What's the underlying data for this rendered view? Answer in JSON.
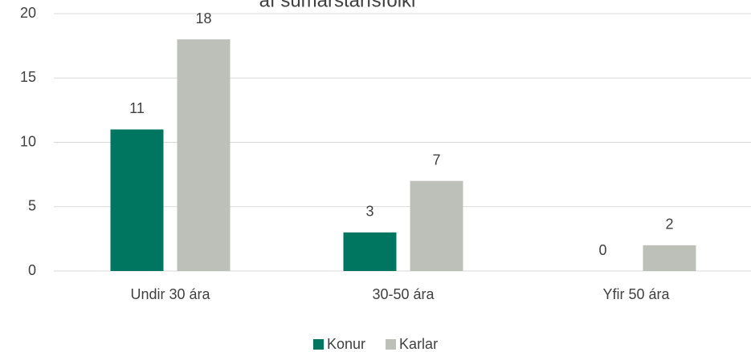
{
  "chart_data": {
    "type": "bar",
    "title": "af sumarstarfsfólki",
    "categories": [
      "Undir 30 ára",
      "30-50 ára",
      "Yfir 50 ára"
    ],
    "series": [
      {
        "name": "Konur",
        "color": "#007560",
        "values": [
          11,
          3,
          0
        ]
      },
      {
        "name": "Karlar",
        "color": "#bcc0b8",
        "values": [
          18,
          7,
          2
        ]
      }
    ],
    "ylim": [
      0,
      20
    ],
    "yticks": [
      0,
      5,
      10,
      15,
      20
    ],
    "grid": true,
    "legend": "bottom"
  }
}
